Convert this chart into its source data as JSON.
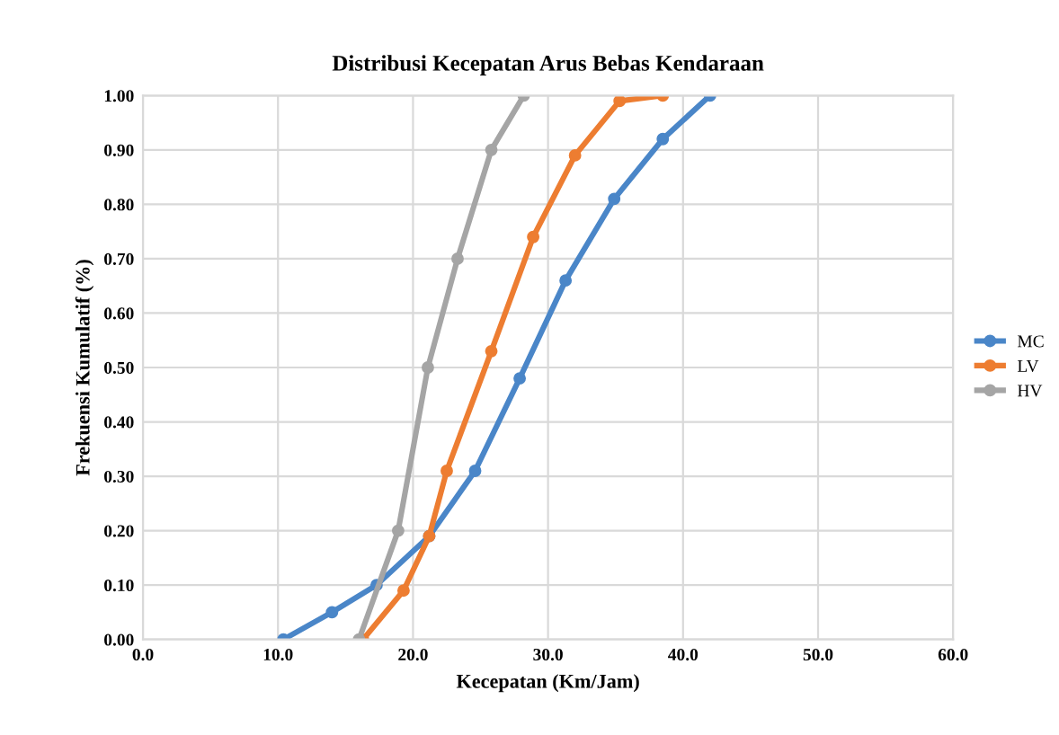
{
  "chart_data": {
    "type": "line",
    "title": "Distribusi Kecepatan Arus Bebas Kendaraan",
    "xlabel": "Kecepatan (Km/Jam)",
    "ylabel": "Frekuensi Kumulatif (%)",
    "xlim": [
      0,
      60
    ],
    "xticks": [
      {
        "value": 0,
        "label": "0.0"
      },
      {
        "value": 10,
        "label": "10.0"
      },
      {
        "value": 20,
        "label": "20.0"
      },
      {
        "value": 30,
        "label": "30.0"
      },
      {
        "value": 40,
        "label": "40.0"
      },
      {
        "value": 50,
        "label": "50.0"
      },
      {
        "value": 60,
        "label": "60.0"
      }
    ],
    "ylim": [
      0,
      1
    ],
    "yticks": [
      {
        "value": 0,
        "label": "0.00"
      },
      {
        "value": 0.1,
        "label": "0.10"
      },
      {
        "value": 0.2,
        "label": "0.20"
      },
      {
        "value": 0.3,
        "label": "0.30"
      },
      {
        "value": 0.4,
        "label": "0.40"
      },
      {
        "value": 0.5,
        "label": "0.50"
      },
      {
        "value": 0.6,
        "label": "0.60"
      },
      {
        "value": 0.7,
        "label": "0.70"
      },
      {
        "value": 0.8,
        "label": "0.80"
      },
      {
        "value": 0.9,
        "label": "0.90"
      },
      {
        "value": 1,
        "label": "1.00"
      }
    ],
    "grid": true,
    "legend": "right",
    "marker": "circle",
    "line_style": "solid",
    "series": [
      {
        "name": "MC",
        "color": "#4a86c8",
        "x": [
          10.4,
          14.0,
          17.3,
          21.2,
          24.6,
          27.9,
          31.3,
          34.9,
          38.5,
          42.0
        ],
        "values": [
          0.0,
          0.05,
          0.1,
          0.19,
          0.31,
          0.48,
          0.66,
          0.81,
          0.92,
          1.0
        ]
      },
      {
        "name": "LV",
        "color": "#ed7d31",
        "x": [
          16.3,
          19.3,
          21.2,
          22.5,
          25.8,
          28.9,
          32.0,
          35.3,
          38.5
        ],
        "values": [
          0.0,
          0.09,
          0.19,
          0.31,
          0.53,
          0.74,
          0.89,
          0.99,
          1.0
        ]
      },
      {
        "name": "HV",
        "color": "#a5a5a5",
        "x": [
          16.0,
          18.9,
          21.1,
          23.3,
          25.8,
          28.2
        ],
        "values": [
          0.0,
          0.2,
          0.5,
          0.7,
          0.9,
          1.0
        ]
      }
    ]
  }
}
